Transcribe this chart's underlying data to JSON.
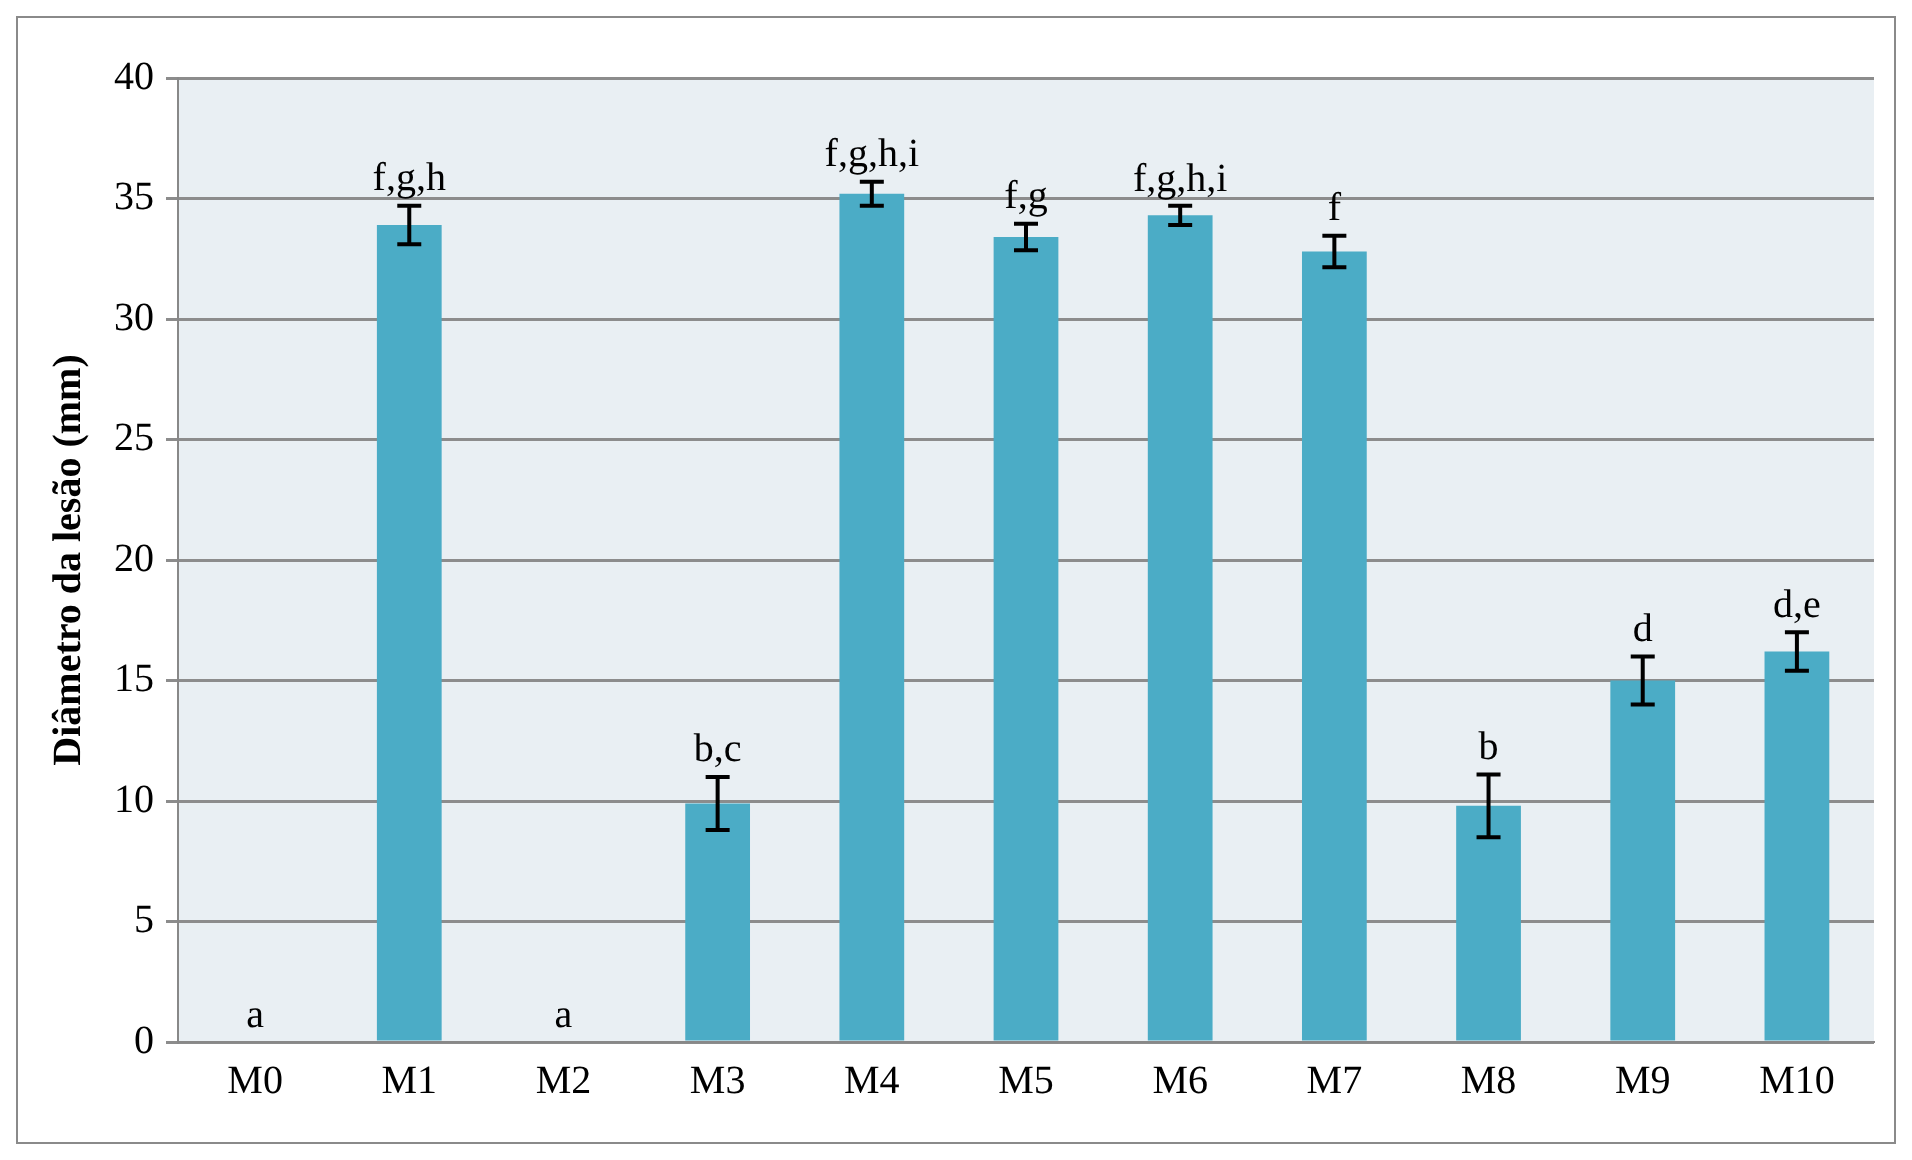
{
  "chart_data": {
    "type": "bar",
    "ylabel": "Diâmetro da lesão (mm)",
    "categories": [
      "M0",
      "M1",
      "M2",
      "M3",
      "M4",
      "M5",
      "M6",
      "M7",
      "M8",
      "M9",
      "M10"
    ],
    "values": [
      0,
      33.9,
      0,
      9.9,
      35.2,
      33.4,
      34.3,
      32.8,
      9.8,
      15.0,
      16.2
    ],
    "errors": [
      null,
      0.8,
      null,
      1.1,
      0.5,
      0.55,
      0.4,
      0.65,
      1.3,
      1.0,
      0.8
    ],
    "color": "#4bacc6",
    "ylim": [
      0,
      40
    ],
    "yticks": [
      0,
      5,
      10,
      15,
      20,
      25,
      30,
      35,
      40
    ],
    "grid": "y",
    "legend": false,
    "annotations": [
      {
        "text": "a",
        "x": "M0",
        "y": 0
      },
      {
        "text": "f,g,h",
        "x": "M1",
        "y": 34.7
      },
      {
        "text": "a",
        "x": "M2",
        "y": 0
      },
      {
        "text": "b,c",
        "x": "M3",
        "y": 11.0
      },
      {
        "text": "f,g,h,i",
        "x": "M4",
        "y": 35.7
      },
      {
        "text": "f,g",
        "x": "M5",
        "y": 33.95
      },
      {
        "text": "f,g,h,i",
        "x": "M6",
        "y": 34.65
      },
      {
        "text": "f",
        "x": "M7",
        "y": 33.45
      },
      {
        "text": "b",
        "x": "M8",
        "y": 11.1
      },
      {
        "text": "d",
        "x": "M9",
        "y": 16.0
      },
      {
        "text": "d,e",
        "x": "M10",
        "y": 17.0
      }
    ]
  }
}
